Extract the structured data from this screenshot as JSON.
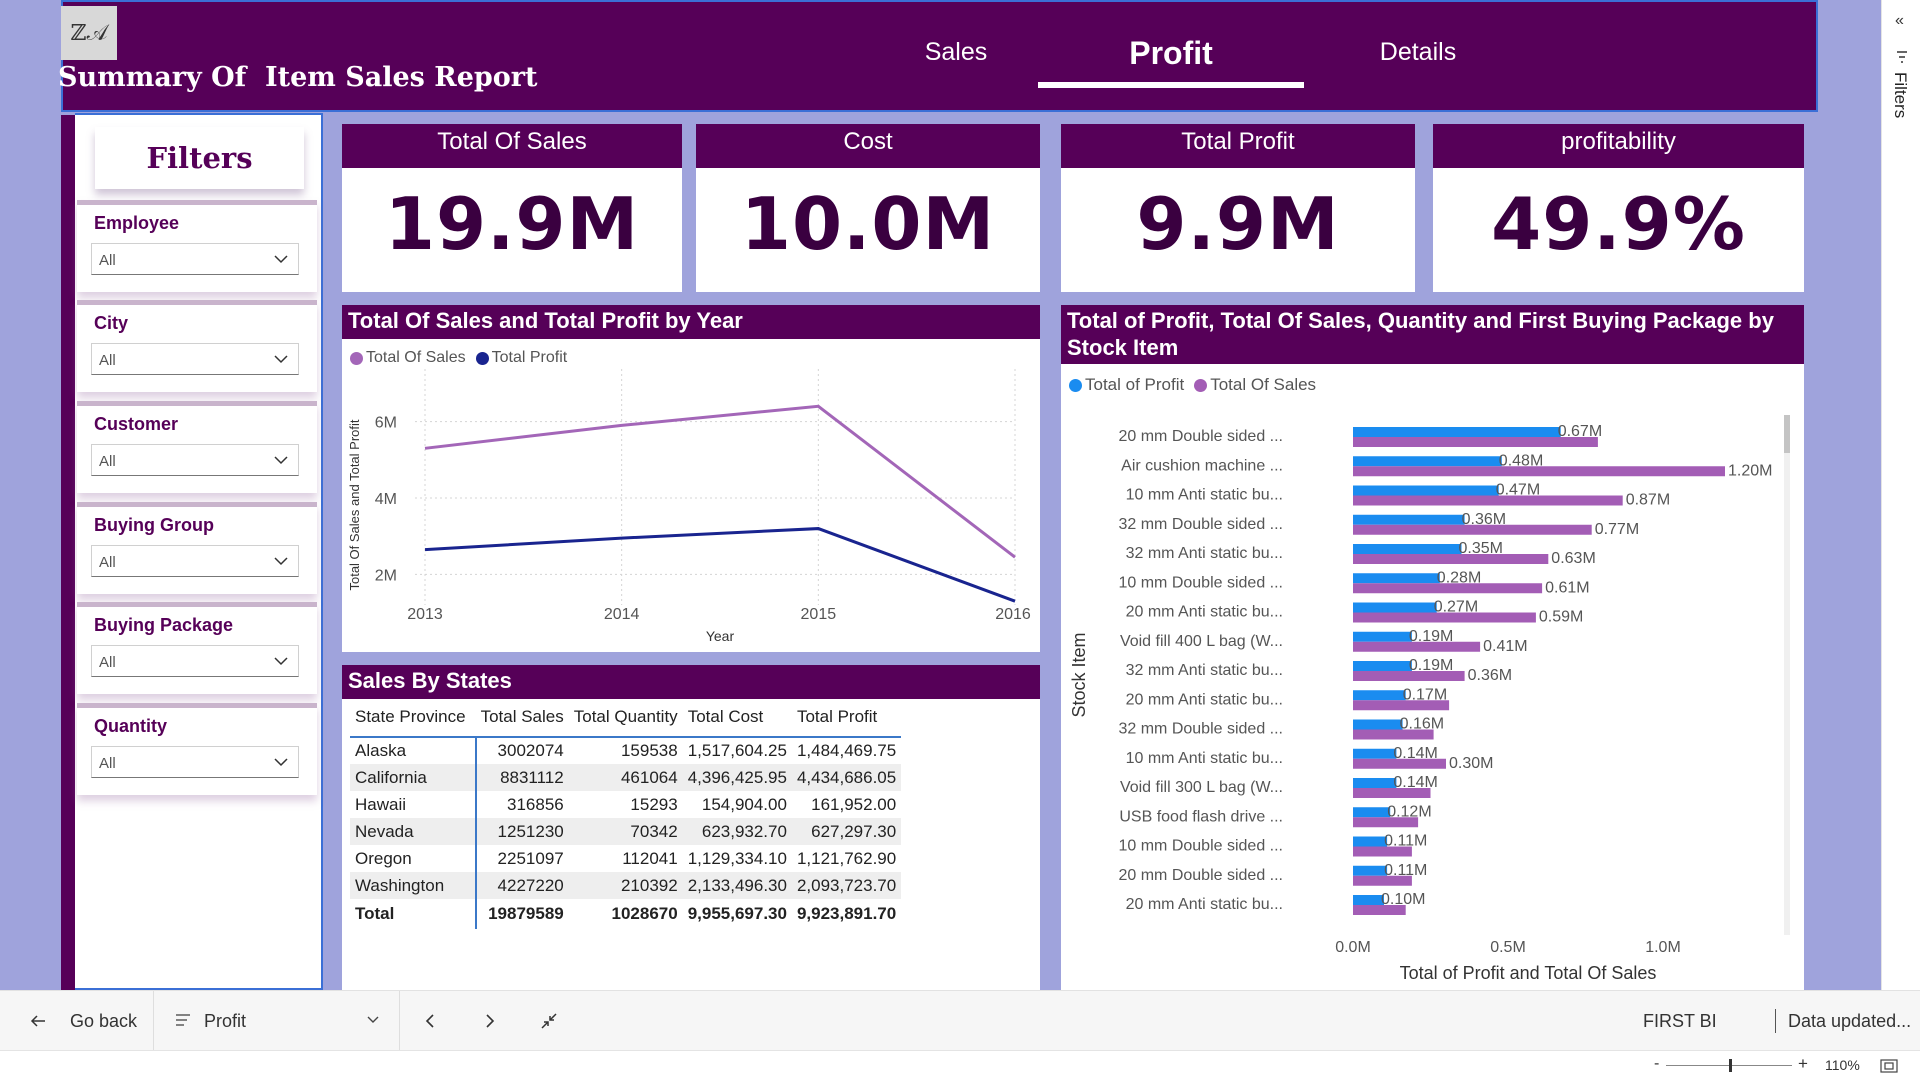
{
  "header": {
    "logo_text": "ℤ𝒜",
    "title": "Summary Of  Item Sales Report",
    "tabs": [
      {
        "label": "Sales"
      },
      {
        "label": "Profit"
      },
      {
        "label": "Details"
      }
    ],
    "active_tab": "Profit"
  },
  "filters": {
    "title": "Filters",
    "slicers": [
      {
        "label": "Employee",
        "value": "All"
      },
      {
        "label": "City",
        "value": "All"
      },
      {
        "label": "Customer",
        "value": "All"
      },
      {
        "label": "Buying Group",
        "value": "All"
      },
      {
        "label": "Buying Package",
        "value": "All"
      },
      {
        "label": "Quantity",
        "value": "All"
      }
    ]
  },
  "kpis": [
    {
      "title": "Total Of Sales",
      "value": "19.9M"
    },
    {
      "title": "Cost",
      "value": "10.0M"
    },
    {
      "title": "Total Profit",
      "value": "9.9M"
    },
    {
      "title": "profitability",
      "value": "49.9%"
    }
  ],
  "colors": {
    "primary": "#560058",
    "canvas": "#9fa3dc",
    "sales_line": "#a366b8",
    "profit_line": "#19248f",
    "profit_bar": "#1a8cf0",
    "sales_bar": "#a35db5"
  },
  "chart_data": [
    {
      "type": "line",
      "title": "Total Of Sales and Total Profit by Year",
      "xlabel": "Year",
      "ylabel": "Total Of Sales and Total Profit",
      "x": [
        "2013",
        "2014",
        "2015",
        "2016"
      ],
      "ylim": [
        1200000,
        6800000
      ],
      "yticks": [
        "2M",
        "4M",
        "6M"
      ],
      "yticks_values": [
        2000000,
        4000000,
        6000000
      ],
      "grid": true,
      "legend": "top-left",
      "series": [
        {
          "name": "Total Of Sales",
          "values": [
            5300000,
            5900000,
            6400000,
            2450000
          ]
        },
        {
          "name": "Total Profit",
          "values": [
            2650000,
            2950000,
            3200000,
            1300000
          ]
        }
      ]
    },
    {
      "type": "bar",
      "orientation": "horizontal",
      "title": "Total of Profit, Total Of Sales, Quantity and First Buying Package by Stock Item",
      "xlabel": "Total of Profit and Total Of Sales",
      "ylabel": "Stock Item",
      "xlim": [
        0,
        1.2
      ],
      "xticks": [
        "0.0M",
        "0.5M",
        "1.0M"
      ],
      "xticks_values": [
        0,
        0.5,
        1.0
      ],
      "legend": "top-left",
      "categories": [
        "20 mm Double sided ...",
        "Air cushion machine ...",
        "10 mm Anti static bu...",
        "32 mm Double sided ...",
        "32 mm Anti static bu...",
        "10 mm Double sided ...",
        "20 mm Anti static bu...",
        "Void fill 400 L bag (W...",
        "32 mm Anti static bu...",
        "20 mm Anti static bu...",
        "32 mm Double sided ...",
        "10 mm Anti static bu...",
        "Void fill 300 L bag (W...",
        "USB food flash drive ...",
        "10 mm Double sided ...",
        "20 mm Double sided ...",
        "20 mm Anti static bu..."
      ],
      "series": [
        {
          "name": "Total of Profit",
          "values": [
            0.67,
            0.48,
            0.47,
            0.36,
            0.35,
            0.28,
            0.27,
            0.19,
            0.19,
            0.17,
            0.16,
            0.14,
            0.14,
            0.12,
            0.11,
            0.11,
            0.1
          ],
          "labels": [
            "0.67M",
            "0.48M",
            "0.47M",
            "0.36M",
            "0.35M",
            "0.28M",
            "0.27M",
            "0.19M",
            "0.19M",
            "0.17M",
            "0.16M",
            "0.14M",
            "0.14M",
            "0.12M",
            "0.11M",
            "0.11M",
            "0.10M"
          ]
        },
        {
          "name": "Total Of Sales",
          "values": [
            0.79,
            1.2,
            0.87,
            0.77,
            0.63,
            0.61,
            0.59,
            0.41,
            0.36,
            0.31,
            0.26,
            0.3,
            0.25,
            0.21,
            0.19,
            0.19,
            0.17
          ],
          "labels": [
            "",
            "1.20M",
            "0.87M",
            "0.77M",
            "0.63M",
            "0.61M",
            "0.59M",
            "0.41M",
            "0.36M",
            "",
            "",
            "0.30M",
            "",
            "",
            "",
            "",
            ""
          ]
        }
      ]
    },
    {
      "type": "table",
      "title": "Sales By States",
      "columns": [
        "State Province",
        "Total Sales",
        "Total Quantity",
        "Total Cost",
        "Total Profit"
      ],
      "rows": [
        [
          "Alaska",
          "3002074",
          "159538",
          "1,517,604.25",
          "1,484,469.75"
        ],
        [
          "California",
          "8831112",
          "461064",
          "4,396,425.95",
          "4,434,686.05"
        ],
        [
          "Hawaii",
          "316856",
          "15293",
          "154,904.00",
          "161,952.00"
        ],
        [
          "Nevada",
          "1251230",
          "70342",
          "623,932.70",
          "627,297.30"
        ],
        [
          "Oregon",
          "2251097",
          "112041",
          "1,129,334.10",
          "1,121,762.90"
        ],
        [
          "Washington",
          "4227220",
          "210392",
          "2,133,496.30",
          "2,093,723.70"
        ]
      ],
      "total": [
        "Total",
        "19879589",
        "1028670",
        "9,955,697.30",
        "9,923,891.70"
      ]
    }
  ],
  "side_panel": {
    "collapse_icon": "«",
    "label": "Filters"
  },
  "bottom_bar": {
    "back_label": "Go back",
    "page_label": "Profit",
    "workspace": "FIRST BI",
    "status": "Data updated...",
    "zoom": "110%"
  }
}
